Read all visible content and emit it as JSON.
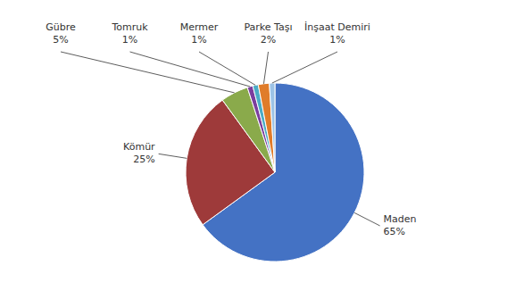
{
  "chart_data": {
    "type": "pie",
    "categories": [
      "Maden",
      "Kömür",
      "Gübre",
      "Tomruk",
      "Mermer",
      "Parke Taşı",
      "İnşaat Demiri"
    ],
    "values": [
      65,
      25,
      5,
      1,
      1,
      2,
      1
    ],
    "value_labels": [
      "65%",
      "25%",
      "5%",
      "1%",
      "1%",
      "2%",
      "1%"
    ],
    "colors": [
      "#4472c4",
      "#9e3a3a",
      "#8aaa4b",
      "#7b3e9e",
      "#4bacc6",
      "#e07c2a",
      "#9dc3e6"
    ]
  }
}
